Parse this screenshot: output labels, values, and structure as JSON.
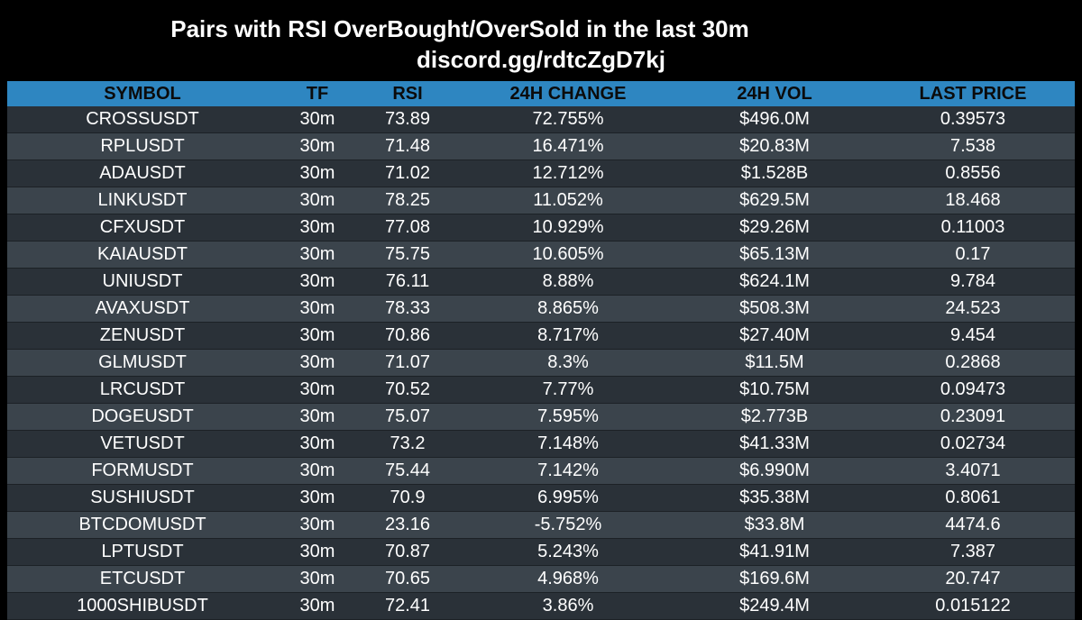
{
  "header": {
    "title": "Pairs with RSI OverBought/OverSold in the last 30m",
    "subtitle": "discord.gg/rdtcZgD7kj"
  },
  "colors": {
    "background": "#000000",
    "header_row": "#2e86c1",
    "row_odd": "#2a3138",
    "row_even": "#3b444c",
    "text": "#ffffff"
  },
  "table": {
    "columns": [
      "SYMBOL",
      "TF",
      "RSI",
      "24H CHANGE",
      "24H VOL",
      "LAST PRICE"
    ],
    "rows": [
      [
        "CROSSUSDT",
        "30m",
        "73.89",
        "72.755%",
        "$496.0M",
        "0.39573"
      ],
      [
        "RPLUSDT",
        "30m",
        "71.48",
        "16.471%",
        "$20.83M",
        "7.538"
      ],
      [
        "ADAUSDT",
        "30m",
        "71.02",
        "12.712%",
        "$1.528B",
        "0.8556"
      ],
      [
        "LINKUSDT",
        "30m",
        "78.25",
        "11.052%",
        "$629.5M",
        "18.468"
      ],
      [
        "CFXUSDT",
        "30m",
        "77.08",
        "10.929%",
        "$29.26M",
        "0.11003"
      ],
      [
        "KAIAUSDT",
        "30m",
        "75.75",
        "10.605%",
        "$65.13M",
        "0.17"
      ],
      [
        "UNIUSDT",
        "30m",
        "76.11",
        "8.88%",
        "$624.1M",
        "9.784"
      ],
      [
        "AVAXUSDT",
        "30m",
        "78.33",
        "8.865%",
        "$508.3M",
        "24.523"
      ],
      [
        "ZENUSDT",
        "30m",
        "70.86",
        "8.717%",
        "$27.40M",
        "9.454"
      ],
      [
        "GLMUSDT",
        "30m",
        "71.07",
        "8.3%",
        "$11.5M",
        "0.2868"
      ],
      [
        "LRCUSDT",
        "30m",
        "70.52",
        "7.77%",
        "$10.75M",
        "0.09473"
      ],
      [
        "DOGEUSDT",
        "30m",
        "75.07",
        "7.595%",
        "$2.773B",
        "0.23091"
      ],
      [
        "VETUSDT",
        "30m",
        "73.2",
        "7.148%",
        "$41.33M",
        "0.02734"
      ],
      [
        "FORMUSDT",
        "30m",
        "75.44",
        "7.142%",
        "$6.990M",
        "3.4071"
      ],
      [
        "SUSHIUSDT",
        "30m",
        "70.9",
        "6.995%",
        "$35.38M",
        "0.8061"
      ],
      [
        "BTCDOMUSDT",
        "30m",
        "23.16",
        "-5.752%",
        "$33.8M",
        "4474.6"
      ],
      [
        "LPTUSDT",
        "30m",
        "70.87",
        "5.243%",
        "$41.91M",
        "7.387"
      ],
      [
        "ETCUSDT",
        "30m",
        "70.65",
        "4.968%",
        "$169.6M",
        "20.747"
      ],
      [
        "1000SHIBUSDT",
        "30m",
        "72.41",
        "3.86%",
        "$249.4M",
        "0.015122"
      ]
    ]
  }
}
